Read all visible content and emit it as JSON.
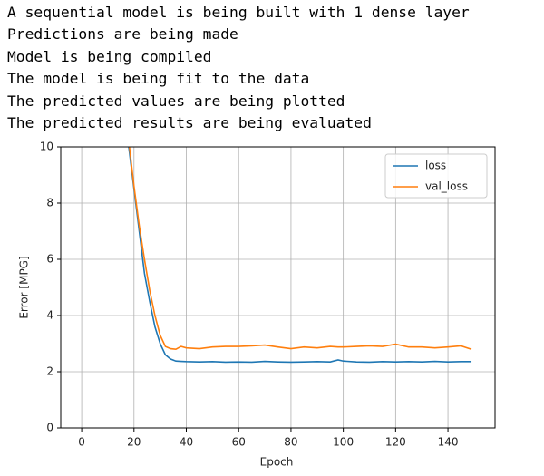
{
  "console_lines": [
    "A sequential model is being built with 1 dense layer",
    "Predictions are being made",
    "Model is being compiled",
    "The model is being fit to the data",
    "The predicted values are being plotted",
    "The predicted results are being evaluated"
  ],
  "chart_data": {
    "type": "line",
    "xlabel": "Epoch",
    "ylabel": "Error [MPG]",
    "x": [
      18,
      20,
      22,
      24,
      26,
      28,
      30,
      32,
      34,
      36,
      38,
      40,
      45,
      50,
      55,
      60,
      65,
      70,
      75,
      80,
      85,
      90,
      95,
      98,
      100,
      105,
      110,
      115,
      120,
      125,
      130,
      135,
      140,
      145,
      149
    ],
    "series": [
      {
        "name": "loss",
        "color": "#1f77b4",
        "values": [
          10.0,
          8.5,
          7.0,
          5.5,
          4.5,
          3.6,
          3.0,
          2.6,
          2.45,
          2.38,
          2.37,
          2.36,
          2.35,
          2.36,
          2.34,
          2.35,
          2.34,
          2.37,
          2.35,
          2.34,
          2.35,
          2.36,
          2.35,
          2.42,
          2.38,
          2.35,
          2.34,
          2.36,
          2.35,
          2.36,
          2.35,
          2.37,
          2.35,
          2.36,
          2.36
        ]
      },
      {
        "name": "val_loss",
        "color": "#ff7f0e",
        "values": [
          10.2,
          8.6,
          7.2,
          6.0,
          4.9,
          4.0,
          3.3,
          2.9,
          2.82,
          2.8,
          2.9,
          2.85,
          2.82,
          2.88,
          2.9,
          2.9,
          2.92,
          2.95,
          2.88,
          2.82,
          2.88,
          2.85,
          2.9,
          2.88,
          2.88,
          2.9,
          2.92,
          2.9,
          2.98,
          2.88,
          2.88,
          2.85,
          2.88,
          2.92,
          2.8
        ]
      }
    ],
    "xlim": [
      -8,
      158
    ],
    "xticks": [
      0,
      20,
      40,
      60,
      80,
      100,
      120,
      140
    ],
    "ylim": [
      0,
      10
    ],
    "yticks": [
      0,
      2,
      4,
      6,
      8,
      10
    ],
    "grid": true,
    "legend": "upper right"
  }
}
